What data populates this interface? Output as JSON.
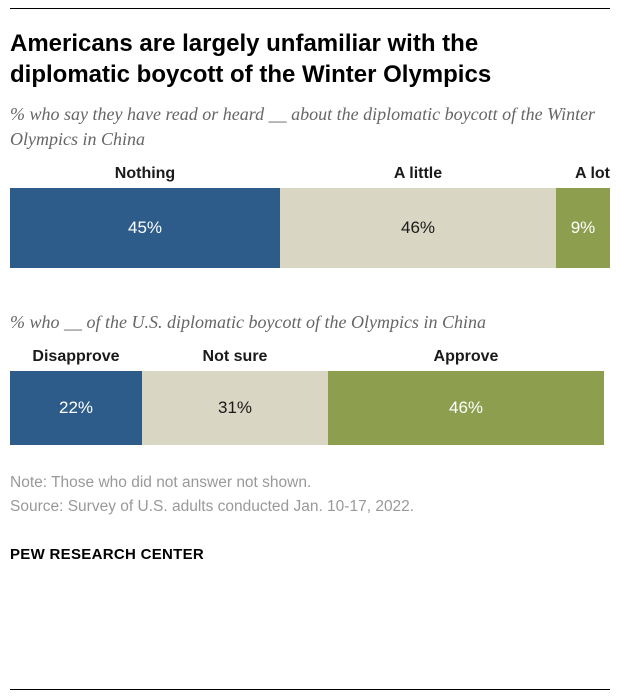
{
  "title": "Americans are largely unfamiliar with the diplomatic boycott of the Winter Olympics",
  "notes": {
    "note": "Note: Those who did not answer not shown.",
    "source": "Source: Survey of U.S. adults conducted Jan. 10-17, 2022."
  },
  "footer": "PEW RESEARCH CENTER",
  "colors": {
    "dark_blue": "#2e5c8a",
    "beige": "#d9d6c3",
    "olive_green": "#8e9e4f"
  },
  "chart_data": [
    {
      "type": "bar",
      "subtype": "horizontal-stacked",
      "title": "% who say they have read or heard __ about the diplomatic boycott of the Winter Olympics in China",
      "categories": [
        "Nothing",
        "A little",
        "A lot"
      ],
      "values": [
        45,
        46,
        9
      ],
      "value_labels": [
        "45%",
        "46%",
        "9%"
      ],
      "segment_colors": [
        "#2e5c8a",
        "#d9d6c3",
        "#8e9e4f"
      ],
      "value_text_colors": [
        "#ffffff",
        "#1a1a1a",
        "#ffffff"
      ],
      "xlim": [
        0,
        100
      ],
      "legend_position": "above-bar",
      "grid": false
    },
    {
      "type": "bar",
      "subtype": "horizontal-stacked",
      "title": "% who __ of the U.S. diplomatic boycott of the Olympics in China",
      "categories": [
        "Disapprove",
        "Not sure",
        "Approve"
      ],
      "values": [
        22,
        31,
        46
      ],
      "value_labels": [
        "22%",
        "31%",
        "46%"
      ],
      "segment_colors": [
        "#2e5c8a",
        "#d9d6c3",
        "#8e9e4f"
      ],
      "value_text_colors": [
        "#ffffff",
        "#1a1a1a",
        "#ffffff"
      ],
      "xlim": [
        0,
        100
      ],
      "legend_position": "above-bar",
      "grid": false
    }
  ]
}
